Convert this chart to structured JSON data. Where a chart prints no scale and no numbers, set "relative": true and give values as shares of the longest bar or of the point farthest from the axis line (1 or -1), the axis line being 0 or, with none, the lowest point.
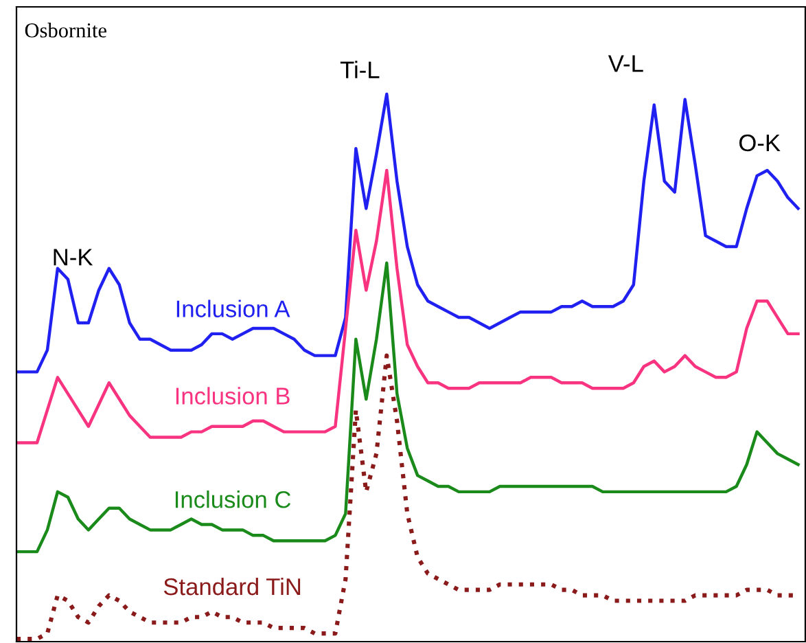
{
  "chart_data": {
    "type": "line",
    "relative": true,
    "line_style": "solid",
    "marker": "none",
    "legend": false,
    "categories": [
      null,
      null,
      null,
      null,
      null,
      null,
      null,
      null,
      null,
      null,
      null,
      null,
      null,
      null,
      null,
      null,
      null,
      null,
      null,
      null,
      null,
      null,
      null,
      null,
      null,
      null,
      null,
      null,
      null,
      null,
      null,
      null,
      null,
      null,
      null,
      null,
      null,
      null,
      null,
      null,
      null,
      null,
      null,
      null,
      null,
      null,
      null,
      null,
      null,
      null,
      null,
      null,
      null,
      null,
      null,
      null,
      null,
      null,
      null,
      null,
      null,
      null,
      null,
      null,
      null,
      null,
      null,
      null,
      null,
      null,
      null,
      null,
      null,
      null,
      null,
      null,
      null
    ],
    "series": [
      {
        "name": "Inclusion A",
        "color": "#2020f0",
        "values": [
          0.49,
          0.49,
          0.49,
          0.53,
          0.68,
          0.66,
          0.58,
          0.58,
          0.64,
          0.68,
          0.65,
          0.58,
          0.55,
          0.55,
          0.54,
          0.53,
          0.53,
          0.53,
          0.54,
          0.56,
          0.56,
          0.55,
          0.56,
          0.57,
          0.57,
          0.57,
          0.56,
          0.55,
          0.53,
          0.52,
          0.52,
          0.52,
          0.59,
          0.9,
          0.79,
          0.89,
          1.0,
          0.84,
          0.72,
          0.65,
          0.62,
          0.61,
          0.6,
          0.59,
          0.59,
          0.58,
          0.57,
          0.58,
          0.59,
          0.6,
          0.6,
          0.6,
          0.6,
          0.61,
          0.61,
          0.62,
          0.61,
          0.61,
          0.61,
          0.62,
          0.65,
          0.84,
          0.98,
          0.84,
          0.82,
          0.99,
          0.87,
          0.74,
          0.73,
          0.72,
          0.72,
          0.79,
          0.85,
          0.86,
          0.84,
          0.81,
          0.79
        ]
      },
      {
        "name": "Inclusion B",
        "color": "#f8337f",
        "values": [
          0.36,
          0.36,
          0.36,
          0.42,
          0.48,
          0.45,
          0.42,
          0.39,
          0.43,
          0.47,
          0.44,
          0.41,
          0.39,
          0.37,
          0.37,
          0.37,
          0.37,
          0.38,
          0.38,
          0.39,
          0.39,
          0.39,
          0.39,
          0.4,
          0.4,
          0.39,
          0.38,
          0.38,
          0.38,
          0.38,
          0.38,
          0.39,
          0.57,
          0.75,
          0.64,
          0.73,
          0.86,
          0.68,
          0.54,
          0.5,
          0.47,
          0.47,
          0.46,
          0.46,
          0.46,
          0.47,
          0.47,
          0.47,
          0.47,
          0.47,
          0.48,
          0.48,
          0.48,
          0.47,
          0.47,
          0.47,
          0.46,
          0.46,
          0.46,
          0.46,
          0.47,
          0.5,
          0.51,
          0.49,
          0.5,
          0.52,
          0.5,
          0.49,
          0.48,
          0.48,
          0.49,
          0.57,
          0.62,
          0.62,
          0.59,
          0.56,
          0.56
        ]
      },
      {
        "name": "Inclusion C",
        "color": "#1a8a1a",
        "values": [
          0.16,
          0.16,
          0.16,
          0.2,
          0.27,
          0.26,
          0.22,
          0.2,
          0.22,
          0.24,
          0.24,
          0.22,
          0.21,
          0.2,
          0.2,
          0.2,
          0.21,
          0.22,
          0.21,
          0.21,
          0.2,
          0.2,
          0.2,
          0.19,
          0.19,
          0.18,
          0.18,
          0.18,
          0.18,
          0.18,
          0.18,
          0.19,
          0.23,
          0.55,
          0.44,
          0.55,
          0.69,
          0.45,
          0.35,
          0.3,
          0.29,
          0.28,
          0.28,
          0.27,
          0.27,
          0.27,
          0.27,
          0.28,
          0.28,
          0.28,
          0.28,
          0.28,
          0.28,
          0.28,
          0.28,
          0.28,
          0.28,
          0.27,
          0.27,
          0.27,
          0.27,
          0.27,
          0.27,
          0.27,
          0.27,
          0.27,
          0.27,
          0.27,
          0.27,
          0.27,
          0.28,
          0.32,
          0.38,
          0.36,
          0.34,
          0.33,
          0.32
        ]
      },
      {
        "name": "Standard TiN",
        "color": "#8b1a1a",
        "line_style": "dotted",
        "values": [
          0,
          0,
          0,
          0.01,
          0.08,
          0.07,
          0.04,
          0.03,
          0.06,
          0.08,
          0.07,
          0.05,
          0.04,
          0.03,
          0.03,
          0.03,
          0.03,
          0.04,
          0.04,
          0.05,
          0.04,
          0.04,
          0.03,
          0.03,
          0.03,
          0.02,
          0.02,
          0.02,
          0.02,
          0.01,
          0.01,
          0.01,
          0.11,
          0.42,
          0.27,
          0.34,
          0.52,
          0.4,
          0.23,
          0.15,
          0.12,
          0.11,
          0.1,
          0.09,
          0.09,
          0.09,
          0.09,
          0.1,
          0.1,
          0.1,
          0.1,
          0.1,
          0.1,
          0.09,
          0.09,
          0.08,
          0.08,
          0.08,
          0.07,
          0.07,
          0.07,
          0.07,
          0.07,
          0.07,
          0.07,
          0.07,
          0.08,
          0.08,
          0.08,
          0.08,
          0.08,
          0.09,
          0.09,
          0.09,
          0.08,
          0.08,
          0.08
        ]
      }
    ],
    "annotations": [
      "Osbornite",
      "N-K",
      "Ti-L",
      "V-L",
      "O-K"
    ]
  }
}
